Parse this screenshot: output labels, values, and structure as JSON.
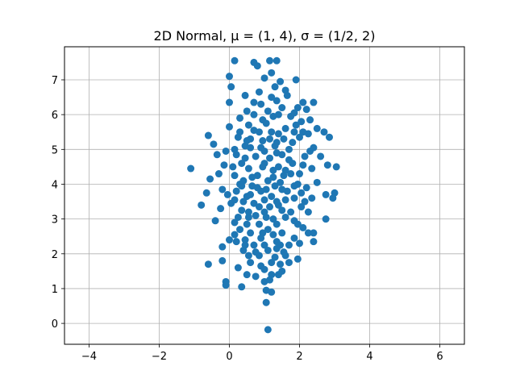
{
  "chart_data": {
    "type": "scatter",
    "title": "2D Normal, μ = (1, 4), σ = (1/2, 2)",
    "xlabel": "",
    "ylabel": "",
    "xlim": [
      -4.7,
      6.7
    ],
    "ylim": [
      -0.6,
      7.95
    ],
    "xticks": [
      -4,
      -2,
      0,
      2,
      4,
      6
    ],
    "xtick_labels": [
      "−4",
      "−2",
      "0",
      "2",
      "4",
      "6"
    ],
    "yticks": [
      0,
      1,
      2,
      3,
      4,
      5,
      6,
      7
    ],
    "ytick_labels": [
      "0",
      "1",
      "2",
      "3",
      "4",
      "5",
      "6",
      "7"
    ],
    "grid": true,
    "marker_color": "#1f77b4",
    "points": [
      [
        0.15,
        7.55
      ],
      [
        0.7,
        7.5
      ],
      [
        0.8,
        7.4
      ],
      [
        1.15,
        7.55
      ],
      [
        1.35,
        7.55
      ],
      [
        0.0,
        7.1
      ],
      [
        1.45,
        6.95
      ],
      [
        1.0,
        7.05
      ],
      [
        1.2,
        7.2
      ],
      [
        1.9,
        7.0
      ],
      [
        0.05,
        6.8
      ],
      [
        1.6,
        6.7
      ],
      [
        0.85,
        6.65
      ],
      [
        1.3,
        6.8
      ],
      [
        0.45,
        6.55
      ],
      [
        1.65,
        6.55
      ],
      [
        0.7,
        6.35
      ],
      [
        2.1,
        6.35
      ],
      [
        2.4,
        6.35
      ],
      [
        0.0,
        6.35
      ],
      [
        1.35,
        6.4
      ],
      [
        0.5,
        6.1
      ],
      [
        1.1,
        6.1
      ],
      [
        1.5,
        6.2
      ],
      [
        1.95,
        6.2
      ],
      [
        2.2,
        6.15
      ],
      [
        0.3,
        5.9
      ],
      [
        0.95,
        5.85
      ],
      [
        1.25,
        5.95
      ],
      [
        1.75,
        5.95
      ],
      [
        2.3,
        5.85
      ],
      [
        2.05,
        5.8
      ],
      [
        0.0,
        5.65
      ],
      [
        0.55,
        5.7
      ],
      [
        1.05,
        5.75
      ],
      [
        1.6,
        5.6
      ],
      [
        2.5,
        5.6
      ],
      [
        0.85,
        5.5
      ],
      [
        1.4,
        5.45
      ],
      [
        1.85,
        5.5
      ],
      [
        2.25,
        5.45
      ],
      [
        2.7,
        5.5
      ],
      [
        -0.6,
        5.4
      ],
      [
        0.25,
        5.35
      ],
      [
        0.6,
        5.3
      ],
      [
        1.15,
        5.3
      ],
      [
        2.0,
        5.35
      ],
      [
        2.85,
        5.35
      ],
      [
        -0.45,
        5.15
      ],
      [
        0.45,
        5.1
      ],
      [
        0.9,
        5.05
      ],
      [
        1.3,
        5.1
      ],
      [
        1.7,
        5.0
      ],
      [
        2.4,
        5.05
      ],
      [
        -0.1,
        4.95
      ],
      [
        -0.35,
        4.85
      ],
      [
        0.2,
        4.85
      ],
      [
        0.75,
        4.8
      ],
      [
        1.5,
        4.85
      ],
      [
        2.15,
        4.8
      ],
      [
        2.6,
        4.8
      ],
      [
        0.35,
        4.6
      ],
      [
        1.0,
        4.6
      ],
      [
        1.8,
        4.6
      ],
      [
        -0.15,
        4.55
      ],
      [
        2.8,
        4.55
      ],
      [
        -1.1,
        4.45
      ],
      [
        0.55,
        4.45
      ],
      [
        1.25,
        4.4
      ],
      [
        1.6,
        4.4
      ],
      [
        2.35,
        4.45
      ],
      [
        3.05,
        4.5
      ],
      [
        -0.3,
        4.3
      ],
      [
        0.15,
        4.25
      ],
      [
        0.8,
        4.25
      ],
      [
        2.0,
        4.3
      ],
      [
        -0.55,
        4.15
      ],
      [
        0.4,
        4.1
      ],
      [
        1.1,
        4.1
      ],
      [
        1.45,
        4.05
      ],
      [
        1.95,
        4.0
      ],
      [
        2.5,
        4.05
      ],
      [
        0.65,
        3.95
      ],
      [
        1.3,
        3.95
      ],
      [
        2.2,
        3.9
      ],
      [
        -0.2,
        3.85
      ],
      [
        0.2,
        3.8
      ],
      [
        0.9,
        3.8
      ],
      [
        1.65,
        3.8
      ],
      [
        2.75,
        3.7
      ],
      [
        3.0,
        3.75
      ],
      [
        -0.65,
        3.75
      ],
      [
        -0.05,
        3.7
      ],
      [
        0.5,
        3.65
      ],
      [
        1.2,
        3.65
      ],
      [
        1.85,
        3.6
      ],
      [
        2.35,
        3.6
      ],
      [
        2.95,
        3.6
      ],
      [
        -0.8,
        3.4
      ],
      [
        0.05,
        3.45
      ],
      [
        0.7,
        3.45
      ],
      [
        1.4,
        3.4
      ],
      [
        2.05,
        3.35
      ],
      [
        -0.25,
        3.3
      ],
      [
        0.35,
        3.25
      ],
      [
        1.0,
        3.2
      ],
      [
        1.75,
        3.2
      ],
      [
        2.25,
        3.2
      ],
      [
        0.55,
        3.05
      ],
      [
        1.25,
        3.0
      ],
      [
        1.6,
        3.05
      ],
      [
        2.75,
        3.0
      ],
      [
        -0.4,
        2.95
      ],
      [
        0.15,
        2.9
      ],
      [
        0.85,
        2.85
      ],
      [
        1.95,
        2.85
      ],
      [
        0.3,
        2.7
      ],
      [
        1.1,
        2.7
      ],
      [
        2.1,
        2.75
      ],
      [
        0.6,
        2.6
      ],
      [
        1.5,
        2.6
      ],
      [
        2.25,
        2.6
      ],
      [
        2.4,
        2.6
      ],
      [
        0.0,
        2.4
      ],
      [
        0.45,
        2.4
      ],
      [
        0.9,
        2.45
      ],
      [
        1.35,
        2.35
      ],
      [
        2.4,
        2.35
      ],
      [
        0.2,
        2.35
      ],
      [
        0.7,
        2.25
      ],
      [
        1.7,
        2.25
      ],
      [
        2.0,
        2.3
      ],
      [
        -0.2,
        2.2
      ],
      [
        0.4,
        2.1
      ],
      [
        1.1,
        2.1
      ],
      [
        1.55,
        2.05
      ],
      [
        0.85,
        1.95
      ],
      [
        1.3,
        1.9
      ],
      [
        1.95,
        1.85
      ],
      [
        -0.2,
        1.8
      ],
      [
        0.6,
        1.75
      ],
      [
        1.2,
        1.75
      ],
      [
        1.7,
        1.75
      ],
      [
        -0.6,
        1.7
      ],
      [
        0.9,
        1.65
      ],
      [
        1.45,
        1.7
      ],
      [
        0.25,
        1.6
      ],
      [
        1.0,
        1.55
      ],
      [
        1.5,
        1.5
      ],
      [
        0.5,
        1.4
      ],
      [
        0.75,
        1.35
      ],
      [
        1.2,
        1.4
      ],
      [
        1.4,
        1.4
      ],
      [
        -0.1,
        1.2
      ],
      [
        1.0,
        1.2
      ],
      [
        1.15,
        1.25
      ],
      [
        -0.1,
        1.1
      ],
      [
        0.35,
        1.05
      ],
      [
        1.05,
        0.95
      ],
      [
        1.2,
        0.9
      ],
      [
        1.05,
        0.6
      ],
      [
        1.1,
        -0.18
      ],
      [
        0.6,
        5.05
      ],
      [
        1.0,
        4.95
      ],
      [
        1.35,
        4.9
      ],
      [
        1.7,
        4.7
      ],
      [
        0.45,
        4.75
      ],
      [
        1.15,
        4.75
      ],
      [
        0.95,
        4.5
      ],
      [
        1.4,
        4.5
      ],
      [
        1.75,
        4.3
      ],
      [
        0.65,
        4.2
      ],
      [
        1.25,
        4.2
      ],
      [
        1.55,
        4.25
      ],
      [
        0.35,
        3.95
      ],
      [
        0.8,
        3.9
      ],
      [
        1.05,
        3.85
      ],
      [
        1.5,
        3.85
      ],
      [
        1.85,
        3.95
      ],
      [
        0.6,
        3.7
      ],
      [
        1.0,
        3.55
      ],
      [
        1.35,
        3.5
      ],
      [
        1.6,
        3.55
      ],
      [
        0.4,
        3.5
      ],
      [
        0.85,
        3.35
      ],
      [
        1.15,
        3.35
      ],
      [
        1.5,
        3.25
      ],
      [
        0.55,
        3.2
      ],
      [
        0.75,
        3.1
      ],
      [
        1.05,
        3.05
      ],
      [
        1.35,
        2.85
      ],
      [
        0.5,
        2.85
      ],
      [
        0.95,
        2.6
      ],
      [
        1.25,
        2.55
      ],
      [
        0.75,
        2.05
      ],
      [
        1.0,
        2.25
      ],
      [
        1.35,
        2.15
      ],
      [
        0.55,
        1.95
      ],
      [
        1.6,
        1.95
      ],
      [
        0.3,
        5.5
      ],
      [
        0.7,
        5.55
      ],
      [
        1.2,
        5.5
      ],
      [
        1.55,
        5.3
      ],
      [
        0.95,
        5.25
      ],
      [
        1.8,
        5.2
      ],
      [
        0.5,
        5.25
      ],
      [
        1.35,
        5.2
      ],
      [
        0.7,
        6.0
      ],
      [
        1.4,
        6.0
      ],
      [
        1.85,
        6.05
      ],
      [
        0.9,
        6.3
      ],
      [
        1.2,
        6.5
      ],
      [
        1.9,
        5.7
      ],
      [
        2.1,
        5.5
      ],
      [
        0.15,
        5.0
      ],
      [
        2.3,
        4.95
      ],
      [
        0.1,
        4.5
      ],
      [
        2.1,
        4.55
      ],
      [
        0.3,
        4.0
      ],
      [
        2.05,
        3.75
      ],
      [
        0.15,
        3.55
      ],
      [
        2.15,
        3.5
      ],
      [
        0.25,
        3.05
      ],
      [
        1.85,
        2.95
      ],
      [
        0.15,
        2.55
      ],
      [
        1.85,
        2.45
      ],
      [
        0.45,
        2.25
      ],
      [
        1.45,
        2.25
      ]
    ]
  }
}
